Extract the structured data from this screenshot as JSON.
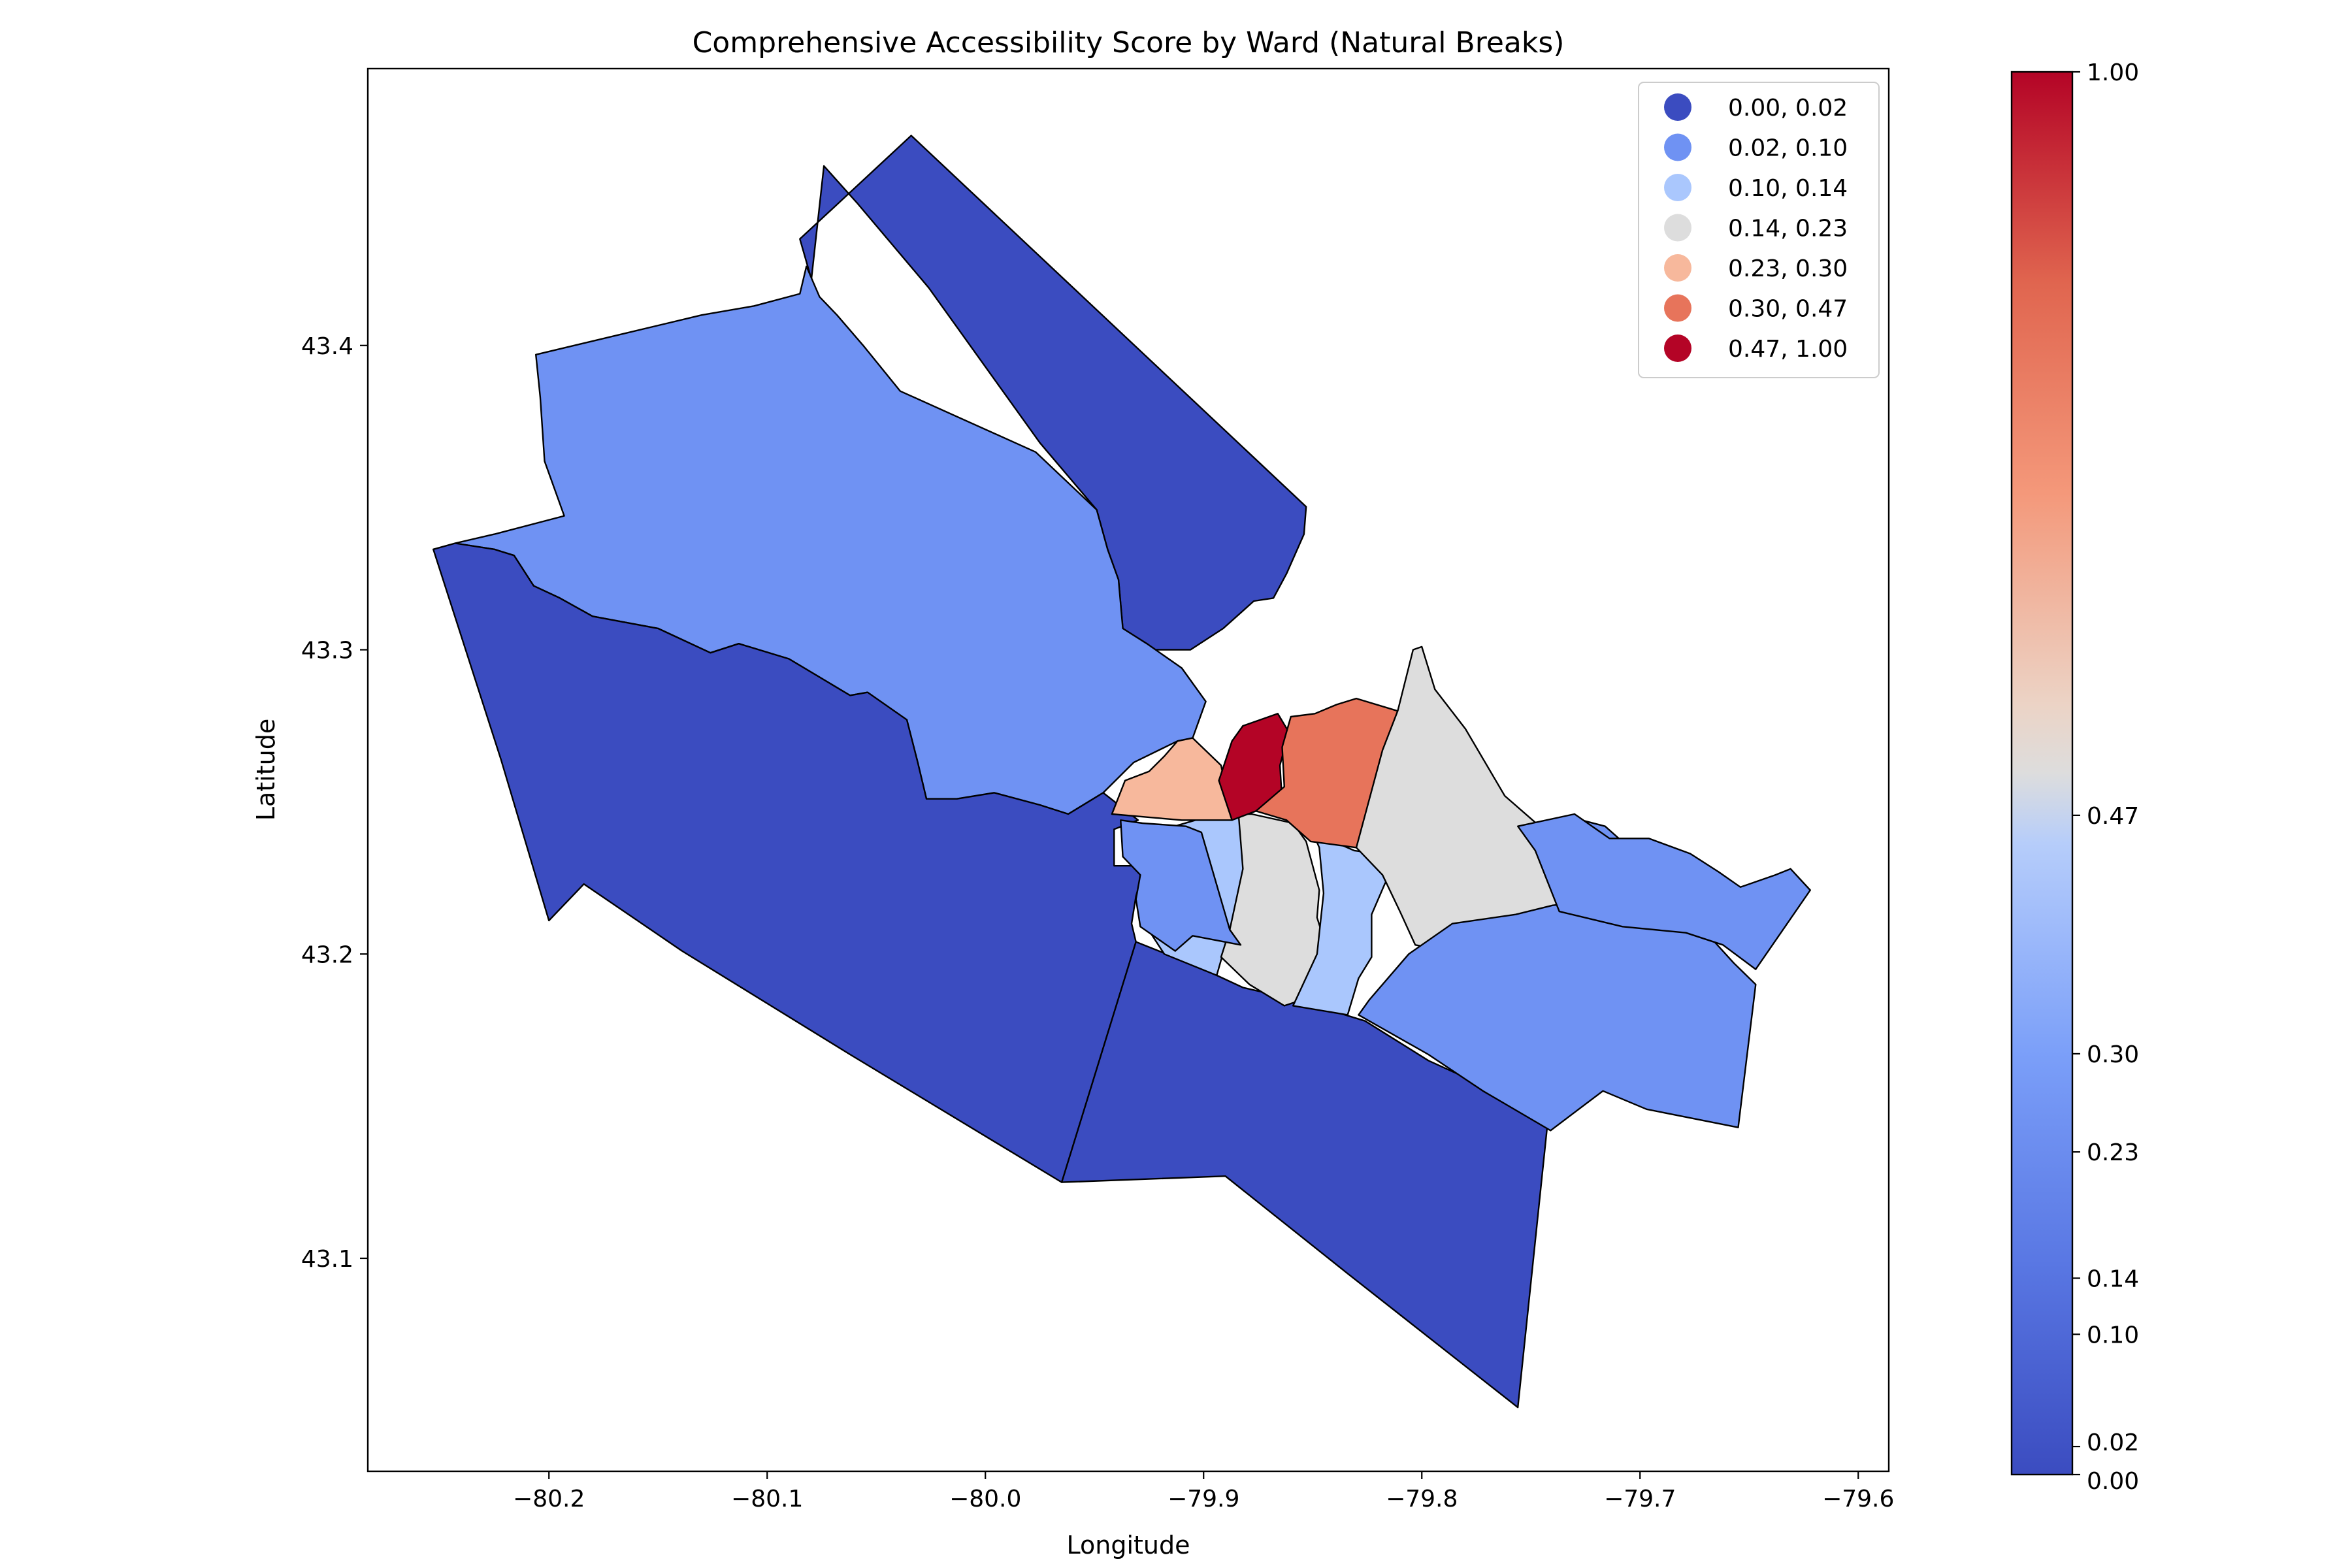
{
  "chart_data": {
    "type": "choropleth",
    "title": "Comprehensive Accessibility Score by Ward (Natural Breaks)",
    "xlabel": "Longitude",
    "ylabel": "Latitude",
    "xlim": [
      -80.283,
      -79.586
    ],
    "ylim": [
      43.03,
      43.491
    ],
    "x_ticks": [
      {
        "value": -80.2,
        "label": "−80.2"
      },
      {
        "value": -80.1,
        "label": "−80.1"
      },
      {
        "value": -80.0,
        "label": "−80.0"
      },
      {
        "value": -79.9,
        "label": "−79.9"
      },
      {
        "value": -79.8,
        "label": "−79.8"
      },
      {
        "value": -79.7,
        "label": "−79.7"
      },
      {
        "value": -79.6,
        "label": "−79.6"
      }
    ],
    "y_ticks": [
      {
        "value": 43.1,
        "label": "43.1"
      },
      {
        "value": 43.2,
        "label": "43.2"
      },
      {
        "value": 43.3,
        "label": "43.3"
      },
      {
        "value": 43.4,
        "label": "43.4"
      }
    ],
    "legend_position": "top-right",
    "classes": [
      {
        "label": "0.00, 0.02",
        "color": "#3b4cc0"
      },
      {
        "label": "0.02, 0.10",
        "color": "#6f92f3"
      },
      {
        "label": "0.10, 0.14",
        "color": "#aac7fd"
      },
      {
        "label": "0.14, 0.23",
        "color": "#dddddd"
      },
      {
        "label": "0.23, 0.30",
        "color": "#f7b89c"
      },
      {
        "label": "0.30, 0.47",
        "color": "#e7745b"
      },
      {
        "label": "0.47, 1.00",
        "color": "#b40426"
      }
    ],
    "colorbar": {
      "colormap": "coolwarm",
      "range": [
        0.0,
        1.0
      ],
      "breaks": [
        0.0,
        0.02,
        0.1,
        0.14,
        0.23,
        0.3,
        0.47,
        1.0
      ],
      "tick_labels": [
        "0.00",
        "0.02",
        "0.10",
        "0.14",
        "0.23",
        "0.30",
        "0.47",
        "1.00"
      ]
    },
    "wards": [
      {
        "id": "W1",
        "class_index": 0,
        "coords": [
          [
            -80.034,
            43.469
          ],
          [
            -79.853,
            43.347
          ],
          [
            -79.854,
            43.338
          ],
          [
            -79.862,
            43.325
          ],
          [
            -79.868,
            43.317
          ],
          [
            -79.877,
            43.316
          ],
          [
            -79.891,
            43.307
          ],
          [
            -79.906,
            43.3
          ],
          [
            -79.922,
            43.3
          ],
          [
            -79.926,
            43.302
          ],
          [
            -79.936,
            43.3
          ],
          [
            -79.937,
            43.307
          ],
          [
            -79.939,
            43.323
          ],
          [
            -79.944,
            43.333
          ],
          [
            -79.949,
            43.346
          ],
          [
            -79.975,
            43.368
          ],
          [
            -80.026,
            43.419
          ],
          [
            -80.059,
            43.447
          ],
          [
            -80.074,
            43.459
          ],
          [
            -80.08,
            43.42
          ],
          [
            -80.077,
            43.415
          ],
          [
            -80.085,
            43.435
          ]
        ]
      },
      {
        "id": "W2",
        "class_index": 1,
        "coords": [
          [
            -80.082,
            43.426
          ],
          [
            -80.076,
            43.416
          ],
          [
            -80.068,
            43.41
          ],
          [
            -80.056,
            43.4
          ],
          [
            -80.039,
            43.385
          ],
          [
            -79.977,
            43.365
          ],
          [
            -79.949,
            43.346
          ],
          [
            -79.944,
            43.333
          ],
          [
            -79.939,
            43.323
          ],
          [
            -79.937,
            43.307
          ],
          [
            -79.926,
            43.302
          ],
          [
            -79.91,
            43.294
          ],
          [
            -79.899,
            43.283
          ],
          [
            -79.905,
            43.271
          ],
          [
            -79.912,
            43.27
          ],
          [
            -79.932,
            43.263
          ],
          [
            -79.946,
            43.253
          ],
          [
            -79.962,
            43.246
          ],
          [
            -79.975,
            43.249
          ],
          [
            -79.996,
            43.253
          ],
          [
            -80.013,
            43.251
          ],
          [
            -80.027,
            43.251
          ],
          [
            -80.031,
            43.263
          ],
          [
            -80.036,
            43.277
          ],
          [
            -80.054,
            43.286
          ],
          [
            -80.062,
            43.285
          ],
          [
            -80.09,
            43.297
          ],
          [
            -80.113,
            43.302
          ],
          [
            -80.126,
            43.299
          ],
          [
            -80.15,
            43.307
          ],
          [
            -80.18,
            43.311
          ],
          [
            -80.195,
            43.317
          ],
          [
            -80.207,
            43.321
          ],
          [
            -80.216,
            43.331
          ],
          [
            -80.225,
            43.333
          ],
          [
            -80.243,
            43.335
          ],
          [
            -80.225,
            43.338
          ],
          [
            -80.193,
            43.344
          ],
          [
            -80.202,
            43.362
          ],
          [
            -80.204,
            43.383
          ],
          [
            -80.206,
            43.397
          ],
          [
            -80.13,
            43.41
          ],
          [
            -80.106,
            43.413
          ],
          [
            -80.085,
            43.417
          ]
        ]
      },
      {
        "id": "W3",
        "class_index": 0,
        "coords": [
          [
            -80.253,
            43.333
          ],
          [
            -80.243,
            43.335
          ],
          [
            -80.225,
            43.333
          ],
          [
            -80.216,
            43.331
          ],
          [
            -80.207,
            43.321
          ],
          [
            -80.195,
            43.317
          ],
          [
            -80.18,
            43.311
          ],
          [
            -80.15,
            43.307
          ],
          [
            -80.126,
            43.299
          ],
          [
            -80.113,
            43.302
          ],
          [
            -80.09,
            43.297
          ],
          [
            -80.062,
            43.285
          ],
          [
            -80.054,
            43.286
          ],
          [
            -80.036,
            43.277
          ],
          [
            -80.031,
            43.263
          ],
          [
            -80.027,
            43.251
          ],
          [
            -80.013,
            43.251
          ],
          [
            -79.996,
            43.253
          ],
          [
            -79.975,
            43.249
          ],
          [
            -79.962,
            43.246
          ],
          [
            -79.946,
            43.253
          ],
          [
            -79.93,
            43.244
          ],
          [
            -79.941,
            43.241
          ],
          [
            -79.941,
            43.229
          ],
          [
            -79.927,
            43.229
          ],
          [
            -79.931,
            43.219
          ],
          [
            -79.933,
            43.21
          ],
          [
            -79.931,
            43.204
          ],
          [
            -79.965,
            43.125
          ],
          [
            -80.062,
            43.167
          ],
          [
            -80.139,
            43.201
          ],
          [
            -80.184,
            43.223
          ],
          [
            -80.2,
            43.211
          ],
          [
            -80.222,
            43.264
          ]
        ]
      },
      {
        "id": "W4",
        "class_index": 0,
        "coords": [
          [
            -79.931,
            43.204
          ],
          [
            -79.903,
            43.196
          ],
          [
            -79.882,
            43.189
          ],
          [
            -79.858,
            43.185
          ],
          [
            -79.826,
            43.178
          ],
          [
            -79.797,
            43.165
          ],
          [
            -79.742,
            43.147
          ],
          [
            -79.756,
            43.051
          ],
          [
            -79.834,
            43.095
          ],
          [
            -79.89,
            43.127
          ],
          [
            -79.965,
            43.125
          ]
        ]
      },
      {
        "id": "W5",
        "class_index": 2,
        "coords": [
          [
            -79.899,
            43.245
          ],
          [
            -79.877,
            43.245
          ],
          [
            -79.878,
            43.23
          ],
          [
            -79.888,
            43.208
          ],
          [
            -79.894,
            43.193
          ],
          [
            -79.918,
            43.2
          ],
          [
            -79.928,
            43.211
          ],
          [
            -79.918,
            43.241
          ]
        ]
      },
      {
        "id": "W6",
        "class_index": 3,
        "coords": [
          [
            -79.884,
            43.246
          ],
          [
            -79.878,
            43.246
          ],
          [
            -79.859,
            43.243
          ],
          [
            -79.853,
            43.237
          ],
          [
            -79.847,
            43.221
          ],
          [
            -79.848,
            43.212
          ],
          [
            -79.838,
            43.189
          ],
          [
            -79.863,
            43.183
          ],
          [
            -79.879,
            43.19
          ],
          [
            -79.892,
            43.199
          ],
          [
            -79.888,
            43.208
          ],
          [
            -79.882,
            43.228
          ]
        ]
      },
      {
        "id": "W7",
        "class_index": 2,
        "coords": [
          [
            -79.85,
            43.24
          ],
          [
            -79.831,
            43.234
          ],
          [
            -79.81,
            43.232
          ],
          [
            -79.817,
            43.223
          ],
          [
            -79.823,
            43.213
          ],
          [
            -79.823,
            43.199
          ],
          [
            -79.829,
            43.192
          ],
          [
            -79.834,
            43.18
          ],
          [
            -79.859,
            43.183
          ],
          [
            -79.848,
            43.2
          ],
          [
            -79.845,
            43.22
          ],
          [
            -79.847,
            43.235
          ]
        ]
      },
      {
        "id": "W8",
        "class_index": 1,
        "coords": [
          [
            -79.938,
            43.244
          ],
          [
            -79.928,
            43.243
          ],
          [
            -79.908,
            43.242
          ],
          [
            -79.901,
            43.24
          ],
          [
            -79.888,
            43.208
          ],
          [
            -79.883,
            43.203
          ],
          [
            -79.905,
            43.206
          ],
          [
            -79.913,
            43.201
          ],
          [
            -79.929,
            43.209
          ],
          [
            -79.931,
            43.218
          ],
          [
            -79.929,
            43.226
          ],
          [
            -79.937,
            43.232
          ]
        ]
      },
      {
        "id": "W9",
        "class_index": 4,
        "coords": [
          [
            -79.912,
            43.27
          ],
          [
            -79.905,
            43.271
          ],
          [
            -79.892,
            43.262
          ],
          [
            -79.887,
            43.244
          ],
          [
            -79.91,
            43.244
          ],
          [
            -79.926,
            43.245
          ],
          [
            -79.942,
            43.246
          ],
          [
            -79.936,
            43.257
          ],
          [
            -79.925,
            43.26
          ],
          [
            -79.918,
            43.265
          ]
        ]
      },
      {
        "id": "W10",
        "class_index": 6,
        "coords": [
          [
            -79.887,
            43.244
          ],
          [
            -79.876,
            43.247
          ],
          [
            -79.864,
            43.25
          ],
          [
            -79.865,
            43.262
          ],
          [
            -79.861,
            43.273
          ],
          [
            -79.866,
            43.279
          ],
          [
            -79.882,
            43.275
          ],
          [
            -79.887,
            43.27
          ],
          [
            -79.893,
            43.257
          ]
        ]
      },
      {
        "id": "W11",
        "class_index": 5,
        "coords": [
          [
            -79.876,
            43.247
          ],
          [
            -79.862,
            43.244
          ],
          [
            -79.851,
            43.237
          ],
          [
            -79.83,
            43.235
          ],
          [
            -79.82,
            43.248
          ],
          [
            -79.814,
            43.259
          ],
          [
            -79.807,
            43.279
          ],
          [
            -79.83,
            43.284
          ],
          [
            -79.839,
            43.282
          ],
          [
            -79.849,
            43.279
          ],
          [
            -79.86,
            43.278
          ],
          [
            -79.864,
            43.268
          ],
          [
            -79.863,
            43.255
          ]
        ]
      },
      {
        "id": "W12",
        "class_index": 3,
        "coords": [
          [
            -79.83,
            43.235
          ],
          [
            -79.818,
            43.226
          ],
          [
            -79.81,
            43.214
          ],
          [
            -79.803,
            43.203
          ],
          [
            -79.78,
            43.2
          ],
          [
            -79.757,
            43.208
          ],
          [
            -79.727,
            43.217
          ],
          [
            -79.728,
            43.235
          ],
          [
            -79.746,
            43.242
          ],
          [
            -79.762,
            43.252
          ],
          [
            -79.78,
            43.274
          ],
          [
            -79.794,
            43.287
          ],
          [
            -79.8,
            43.301
          ],
          [
            -79.804,
            43.3
          ],
          [
            -79.811,
            43.28
          ],
          [
            -79.818,
            43.267
          ]
        ]
      },
      {
        "id": "W13",
        "class_index": 1,
        "coords": [
          [
            -79.727,
            43.217
          ],
          [
            -79.74,
            43.216
          ],
          [
            -79.757,
            43.213
          ],
          [
            -79.786,
            43.21
          ],
          [
            -79.806,
            43.2
          ],
          [
            -79.824,
            43.185
          ],
          [
            -79.829,
            43.18
          ],
          [
            -79.797,
            43.167
          ],
          [
            -79.772,
            43.155
          ],
          [
            -79.741,
            43.142
          ],
          [
            -79.717,
            43.155
          ],
          [
            -79.697,
            43.149
          ],
          [
            -79.655,
            43.143
          ],
          [
            -79.647,
            43.19
          ],
          [
            -79.657,
            43.197
          ],
          [
            -79.676,
            43.212
          ],
          [
            -79.694,
            43.228
          ],
          [
            -79.716,
            43.242
          ],
          [
            -79.732,
            43.245
          ]
        ]
      },
      {
        "id": "W14",
        "class_index": 1,
        "coords": [
          [
            -79.756,
            43.242
          ],
          [
            -79.748,
            43.234
          ],
          [
            -79.737,
            43.214
          ],
          [
            -79.708,
            43.209
          ],
          [
            -79.679,
            43.207
          ],
          [
            -79.662,
            43.203
          ],
          [
            -79.647,
            43.195
          ],
          [
            -79.622,
            43.221
          ],
          [
            -79.631,
            43.228
          ],
          [
            -79.638,
            43.226
          ],
          [
            -79.654,
            43.222
          ],
          [
            -79.664,
            43.227
          ],
          [
            -79.677,
            43.233
          ],
          [
            -79.696,
            43.238
          ],
          [
            -79.714,
            43.238
          ],
          [
            -79.73,
            43.246
          ]
        ]
      }
    ]
  }
}
